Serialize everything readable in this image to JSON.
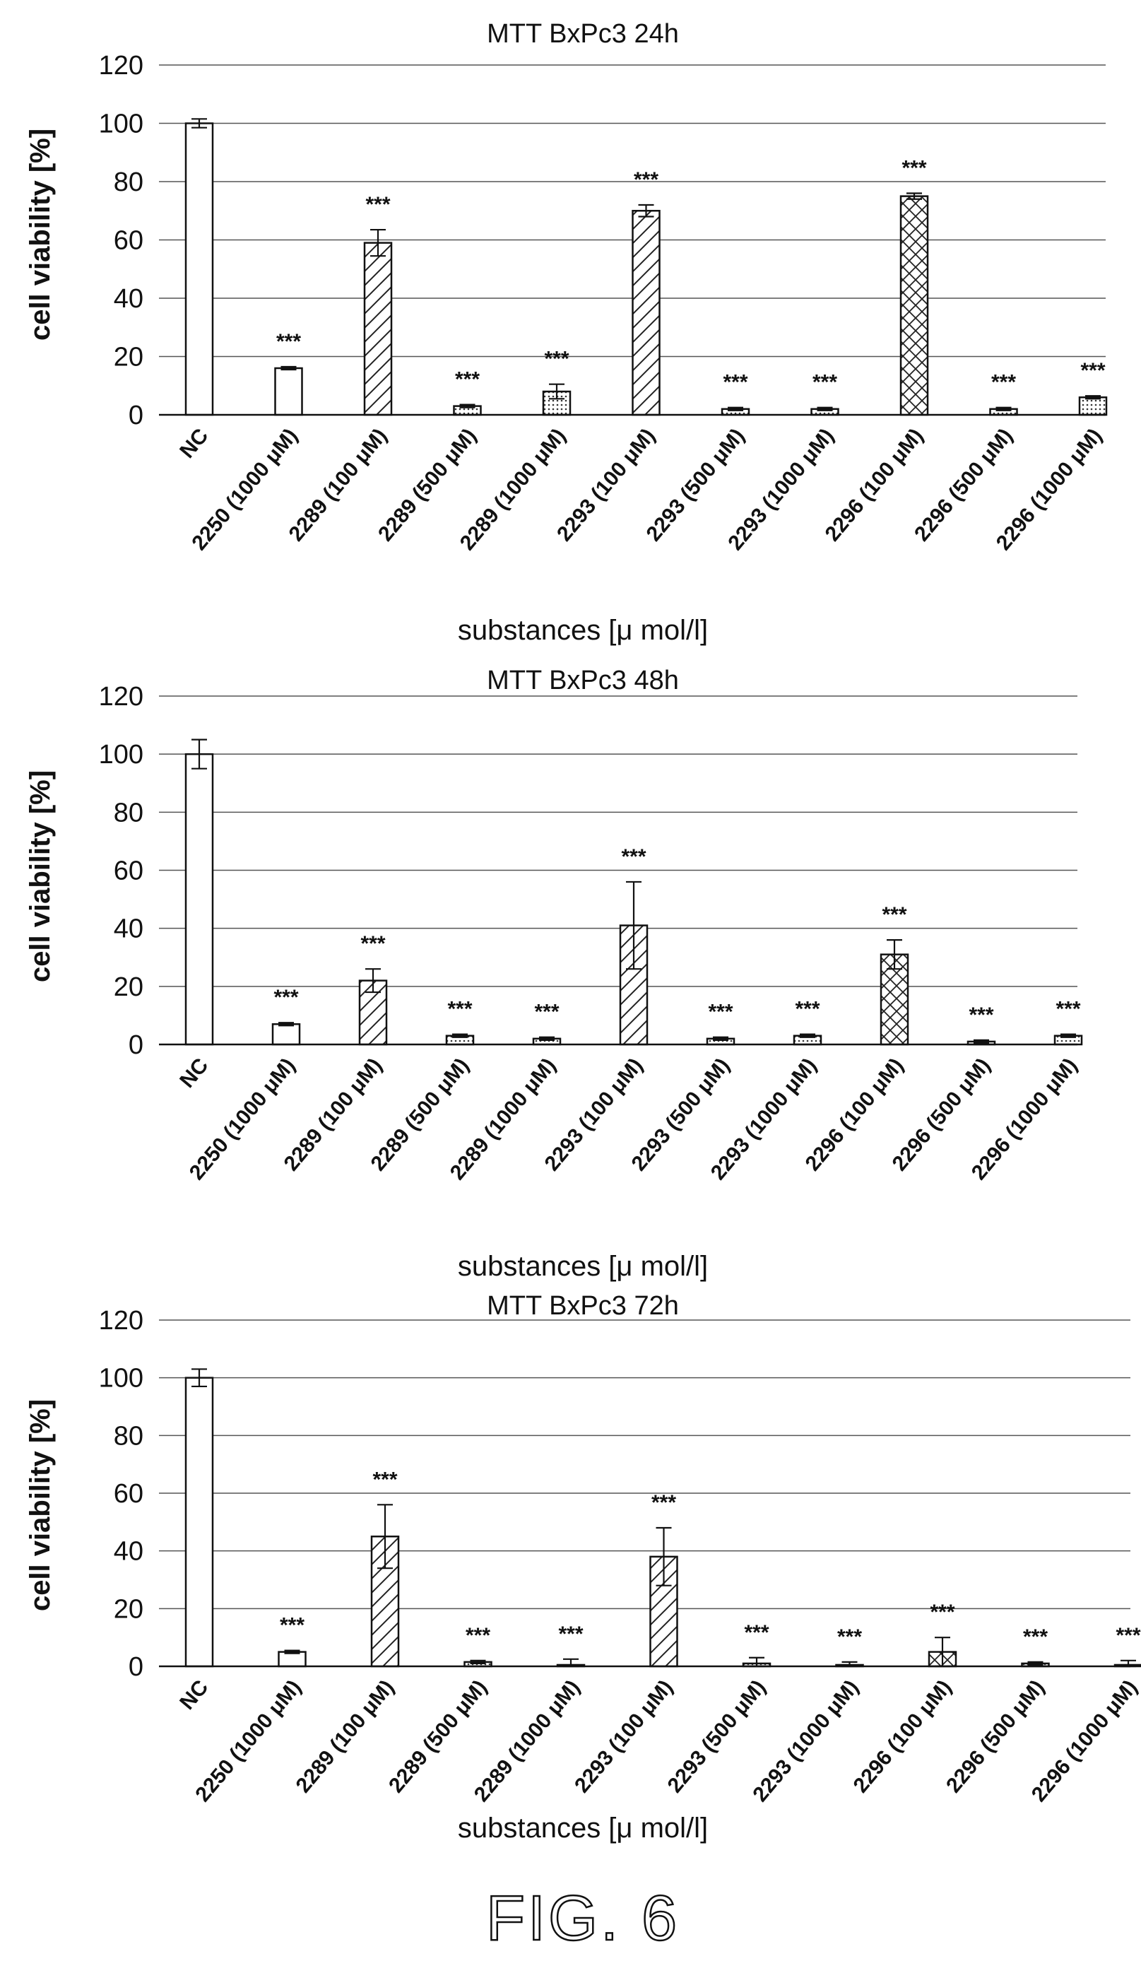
{
  "figure_caption": "FIG. 6",
  "chart_data": [
    {
      "type": "bar",
      "title": "MTT BxPc3 24h",
      "xlabel": "substances [μ mol/l]",
      "ylabel": "cell viability [%]",
      "ylim": [
        0,
        120
      ],
      "yticks": [
        "0",
        "20",
        "40",
        "60",
        "80",
        "100",
        "120"
      ],
      "grid": "horizontal",
      "categories": [
        "NC",
        "2250 (1000 μM)",
        "2289 (100 μM)",
        "2289 (500 μM)",
        "2289 (1000 μM)",
        "2293 (100 μM)",
        "2293 (500 μM)",
        "2293 (1000 μM)",
        "2296 (100 μM)",
        "2296 (500 μM)",
        "2296 (1000 μM)"
      ],
      "values": [
        100,
        16,
        59,
        3,
        8,
        70,
        2,
        2,
        75,
        2,
        6
      ],
      "errors": [
        1.5,
        0.5,
        4.5,
        0.5,
        2.5,
        2,
        0.5,
        0.5,
        1,
        0.5,
        0.5
      ],
      "annotations": [
        "",
        "***",
        "***",
        "***",
        "***",
        "***",
        "***",
        "***",
        "***",
        "***",
        "***"
      ],
      "patterns": [
        "plain",
        "plain",
        "diag",
        "dots",
        "dots",
        "diag",
        "dots",
        "dots",
        "cross",
        "dots",
        "dots"
      ]
    },
    {
      "type": "bar",
      "title": "MTT BxPc3 48h",
      "xlabel": "substances [μ mol/l]",
      "ylabel": "cell viability [%]",
      "ylim": [
        0,
        120
      ],
      "yticks": [
        "0",
        "20",
        "40",
        "60",
        "80",
        "100",
        "120"
      ],
      "grid": "horizontal",
      "categories": [
        "NC",
        "2250 (1000 μM)",
        "2289 (100 μM)",
        "2289 (500 μM)",
        "2289 (1000 μM)",
        "2293 (100 μM)",
        "2293 (500 μM)",
        "2293 (1000 μM)",
        "2296 (100 μM)",
        "2296 (500 μM)",
        "2296 (1000 μM)"
      ],
      "values": [
        100,
        7,
        22,
        3,
        2,
        41,
        2,
        3,
        31,
        1,
        3
      ],
      "errors": [
        5,
        0.5,
        4,
        0.5,
        0.5,
        15,
        0.5,
        0.5,
        5,
        0.5,
        0.5
      ],
      "annotations": [
        "",
        "***",
        "***",
        "***",
        "***",
        "***",
        "***",
        "***",
        "***",
        "***",
        "***"
      ],
      "patterns": [
        "plain",
        "plain",
        "diag",
        "dots",
        "dots",
        "diag",
        "dots",
        "dots",
        "cross",
        "dots",
        "dots"
      ]
    },
    {
      "type": "bar",
      "title": "MTT BxPc3 72h",
      "xlabel": "substances [μ mol/l]",
      "ylabel": "cell viability [%]",
      "ylim": [
        0,
        120
      ],
      "yticks": [
        "0",
        "20",
        "40",
        "60",
        "80",
        "100",
        "120"
      ],
      "grid": "horizontal",
      "categories": [
        "NC",
        "2250 (1000 μM)",
        "2289 (100 μM)",
        "2289 (500 μM)",
        "2289 (1000 μM)",
        "2293 (100 μM)",
        "2293 (500 μM)",
        "2293 (1000 μM)",
        "2296 (100 μM)",
        "2296 (500 μM)",
        "2296 (1000 μM)"
      ],
      "values": [
        100,
        5,
        45,
        1.5,
        0.5,
        38,
        1,
        0.5,
        5,
        1,
        0.5
      ],
      "errors": [
        3,
        0.5,
        11,
        0.5,
        2,
        10,
        2,
        1,
        5,
        0.5,
        1.5
      ],
      "annotations": [
        "",
        "***",
        "***",
        "***",
        "***",
        "***",
        "***",
        "***",
        "***",
        "***",
        "***"
      ],
      "patterns": [
        "plain",
        "plain",
        "diag",
        "dots",
        "dots",
        "diag",
        "dots",
        "dots",
        "cross",
        "dots",
        "dots"
      ]
    }
  ]
}
